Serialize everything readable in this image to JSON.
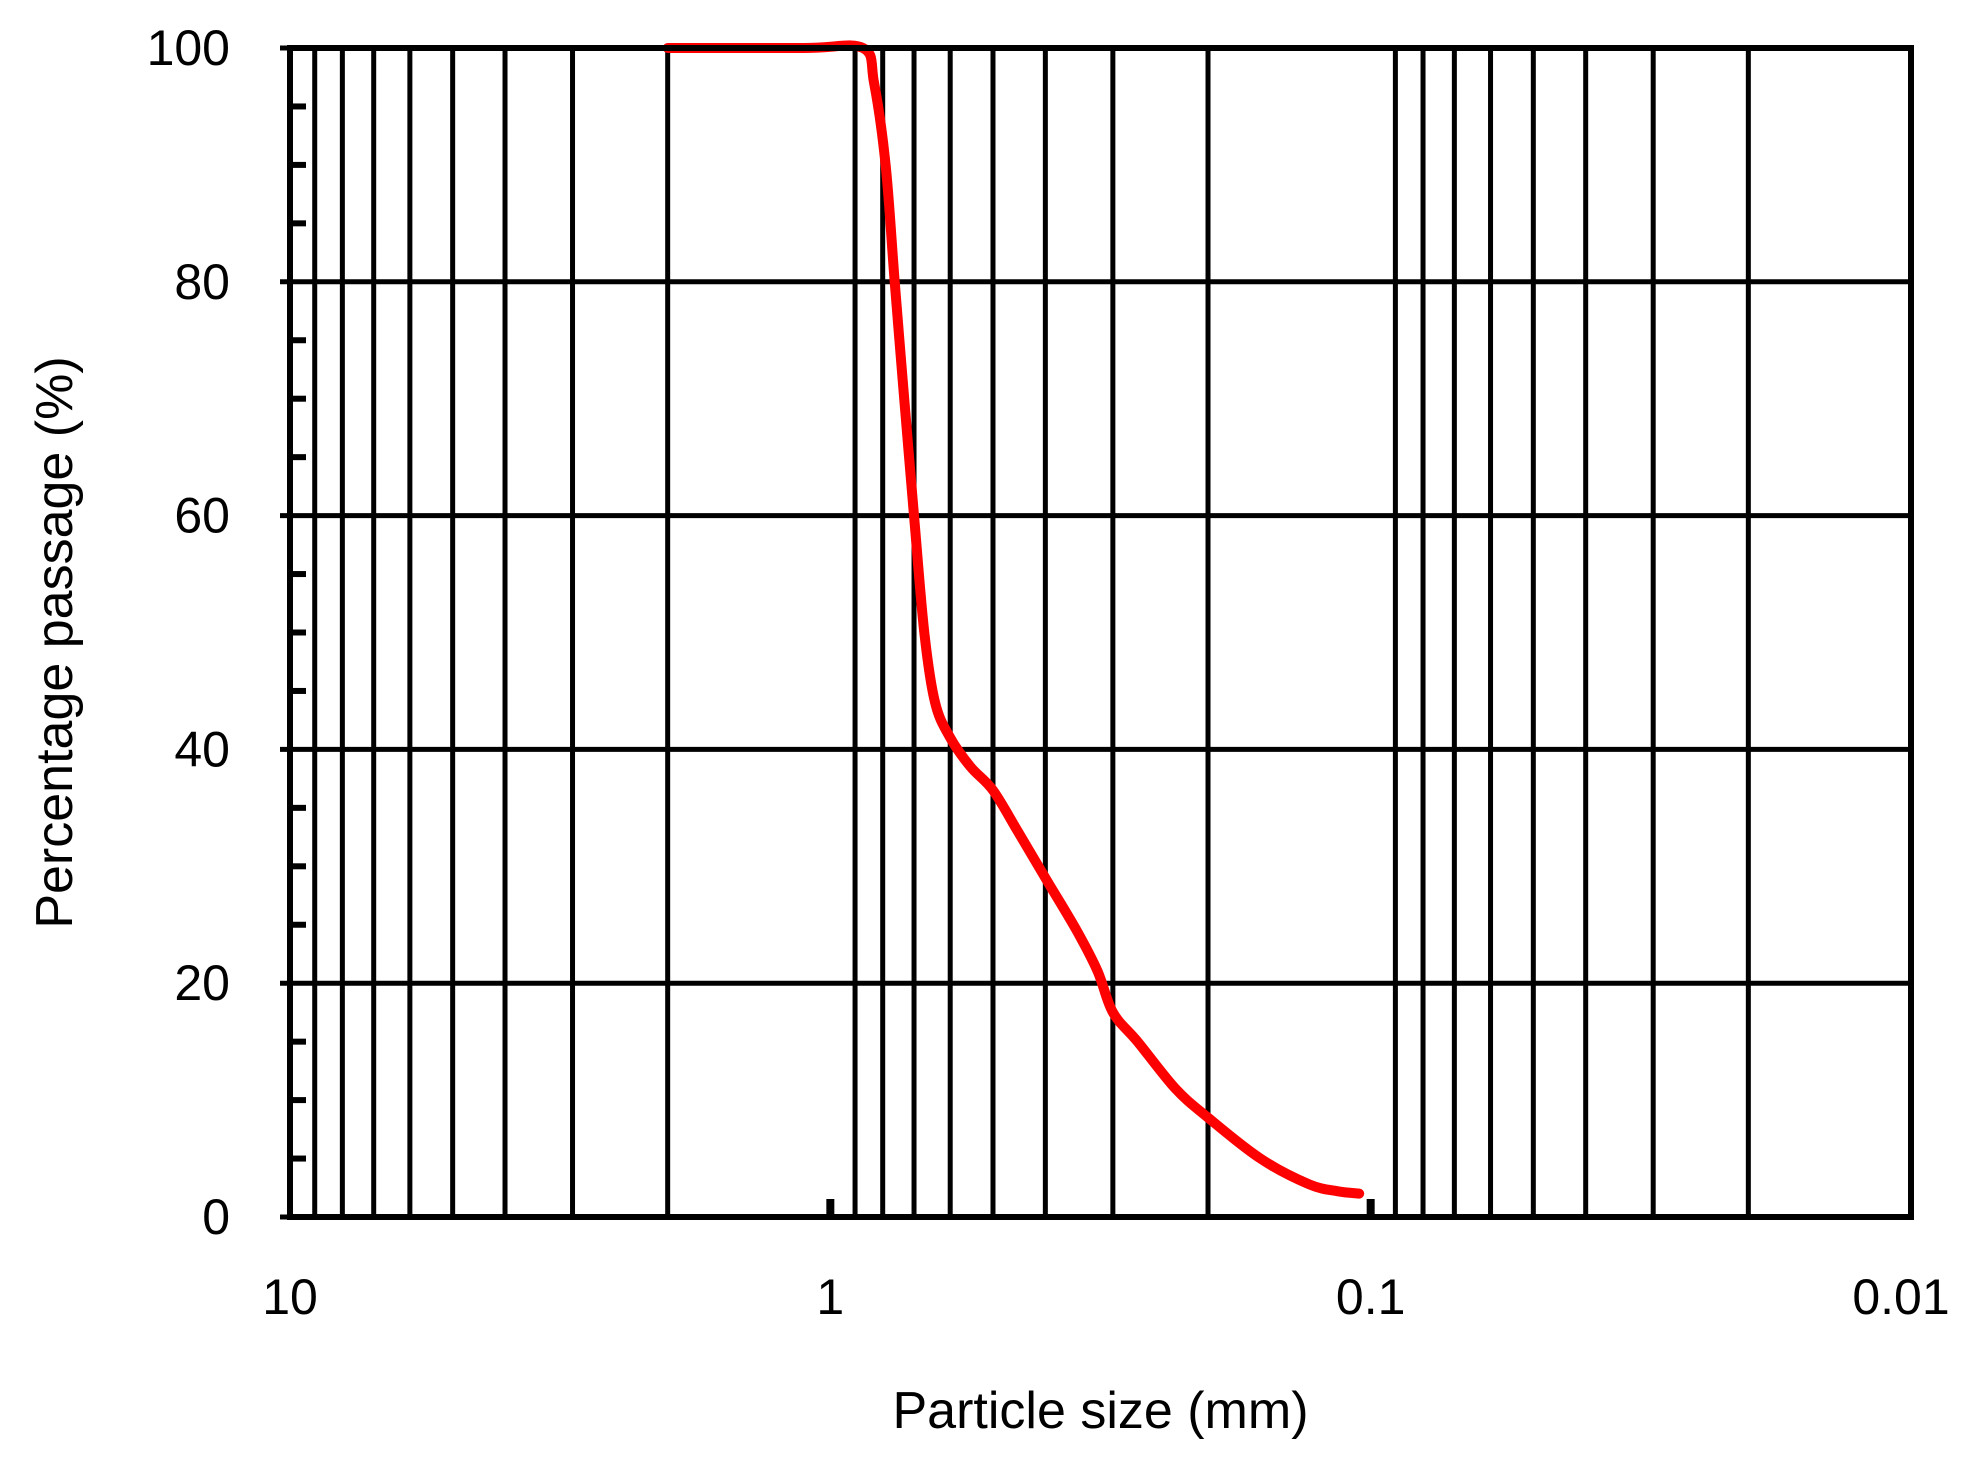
{
  "chart_data": {
    "type": "line",
    "xlabel": "Particle size (mm)",
    "ylabel": "Percentage passage (%)",
    "x_scale": "log",
    "x_reversed": true,
    "xlim": [
      10,
      0.01
    ],
    "ylim": [
      0,
      100
    ],
    "xticks": [
      {
        "value": 10,
        "label": "10"
      },
      {
        "value": 1,
        "label": "1"
      },
      {
        "value": 0.1,
        "label": "0.1"
      },
      {
        "value": 0.01,
        "label": "0.01"
      }
    ],
    "yticks": [
      {
        "value": 0,
        "label": "0"
      },
      {
        "value": 20,
        "label": "20"
      },
      {
        "value": 40,
        "label": "40"
      },
      {
        "value": 60,
        "label": "60"
      },
      {
        "value": 80,
        "label": "80"
      },
      {
        "value": 100,
        "label": "100"
      }
    ],
    "y_minor_step": 5,
    "grid": true,
    "series": [
      {
        "color": "#ff0000",
        "points": [
          {
            "x": 2.0,
            "y": 100
          },
          {
            "x": 1.12,
            "y": 100
          },
          {
            "x": 0.87,
            "y": 100
          },
          {
            "x": 0.83,
            "y": 97
          },
          {
            "x": 0.79,
            "y": 90
          },
          {
            "x": 0.76,
            "y": 80
          },
          {
            "x": 0.73,
            "y": 70
          },
          {
            "x": 0.7,
            "y": 60
          },
          {
            "x": 0.67,
            "y": 50
          },
          {
            "x": 0.64,
            "y": 44
          },
          {
            "x": 0.6,
            "y": 41
          },
          {
            "x": 0.55,
            "y": 38.5
          },
          {
            "x": 0.5,
            "y": 36.5
          },
          {
            "x": 0.45,
            "y": 33
          },
          {
            "x": 0.4,
            "y": 29
          },
          {
            "x": 0.35,
            "y": 24.5
          },
          {
            "x": 0.32,
            "y": 21
          },
          {
            "x": 0.3,
            "y": 17.5
          },
          {
            "x": 0.27,
            "y": 15
          },
          {
            "x": 0.23,
            "y": 11
          },
          {
            "x": 0.2,
            "y": 8.5
          },
          {
            "x": 0.16,
            "y": 5
          },
          {
            "x": 0.13,
            "y": 2.8
          },
          {
            "x": 0.115,
            "y": 2.2
          },
          {
            "x": 0.105,
            "y": 2.0
          }
        ]
      }
    ]
  }
}
